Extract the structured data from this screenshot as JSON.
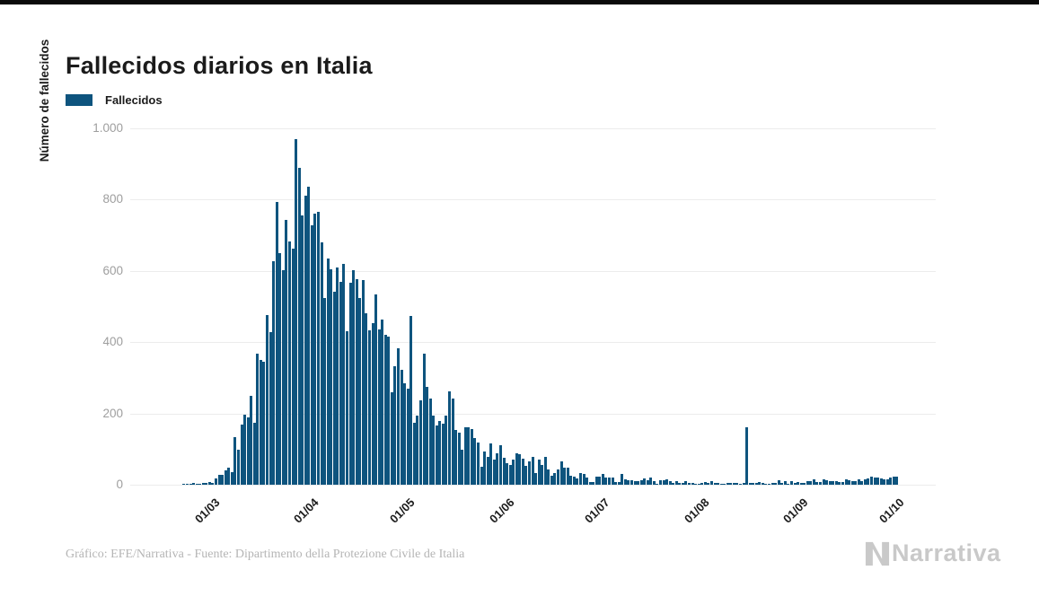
{
  "page": {
    "title": "Fallecidos diarios en Italia"
  },
  "legend": {
    "label": "Fallecidos",
    "color": "#0e547e"
  },
  "chart_data": {
    "type": "bar",
    "title": "Fallecidos diarios en Italia",
    "xlabel": "",
    "ylabel": "Número de fallecidos",
    "ylim": [
      0,
      1000
    ],
    "grid": true,
    "legend_position": "top-left",
    "bar_color": "#0e547e",
    "x_start_date": "21/02",
    "x_end_date": "01/10",
    "y_ticks": [
      {
        "label": "1.000",
        "value": 1000
      },
      {
        "label": "800",
        "value": 800
      },
      {
        "label": "600",
        "value": 600
      },
      {
        "label": "400",
        "value": 400
      },
      {
        "label": "200",
        "value": 200
      },
      {
        "label": "0",
        "value": 0
      }
    ],
    "x_ticks": [
      {
        "label": "01/03",
        "day_index": 9
      },
      {
        "label": "01/04",
        "day_index": 40
      },
      {
        "label": "01/05",
        "day_index": 70
      },
      {
        "label": "01/06",
        "day_index": 101
      },
      {
        "label": "01/07",
        "day_index": 131
      },
      {
        "label": "01/08",
        "day_index": 162
      },
      {
        "label": "01/09",
        "day_index": 193
      },
      {
        "label": "01/10",
        "day_index": 223
      }
    ],
    "series": [
      {
        "name": "Fallecidos",
        "values": [
          1,
          1,
          1,
          4,
          3,
          2,
          5,
          4,
          8,
          5,
          18,
          27,
          28,
          41,
          49,
          36,
          133,
          97,
          168,
          196,
          189,
          250,
          175,
          368,
          349,
          345,
          475,
          427,
          627,
          793,
          651,
          601,
          743,
          683,
          662,
          969,
          889,
          756,
          812,
          837,
          727,
          760,
          766,
          681,
          525,
          636,
          604,
          542,
          610,
          570,
          619,
          431,
          566,
          602,
          578,
          525,
          575,
          482,
          433,
          454,
          534,
          437,
          464,
          420,
          415,
          260,
          333,
          382,
          323,
          285,
          269,
          474,
          174,
          195,
          236,
          369,
          274,
          243,
          194,
          165,
          179,
          172,
          195,
          262,
          242,
          153,
          145,
          99,
          162,
          161,
          156,
          130,
          119,
          50,
          92,
          78,
          117,
          70,
          87,
          111,
          75,
          60,
          55,
          71,
          88,
          85,
          72,
          53,
          65,
          79,
          34,
          71,
          56,
          78,
          44,
          26,
          34,
          43,
          66,
          47,
          49,
          24,
          23,
          18,
          34,
          30,
          20,
          8,
          8,
          23,
          23,
          30,
          20,
          21,
          21,
          7,
          8,
          30,
          15,
          12,
          12,
          9,
          9,
          13,
          17,
          13,
          20,
          11,
          3,
          13,
          12,
          15,
          10,
          6,
          10,
          5,
          5,
          11,
          5,
          6,
          3,
          3,
          5,
          8,
          5,
          10,
          6,
          6,
          3,
          2,
          6,
          4,
          6,
          6,
          3,
          4,
          160,
          4,
          4,
          5,
          7,
          6,
          3,
          3,
          4,
          4,
          13,
          6,
          9,
          3,
          9,
          4,
          8,
          6,
          6,
          10,
          10,
          16,
          8,
          8,
          14,
          13,
          10,
          9,
          10,
          7,
          8,
          14,
          12,
          10,
          11,
          15,
          11,
          14,
          17,
          23,
          21,
          20,
          17,
          16,
          16,
          19,
          23,
          23
        ]
      }
    ]
  },
  "footer": {
    "credit": "Gráfico: EFE/Narrativa - Fuente: Dipartimento della Protezione Civile de Italia",
    "brand": "Narrativa"
  }
}
